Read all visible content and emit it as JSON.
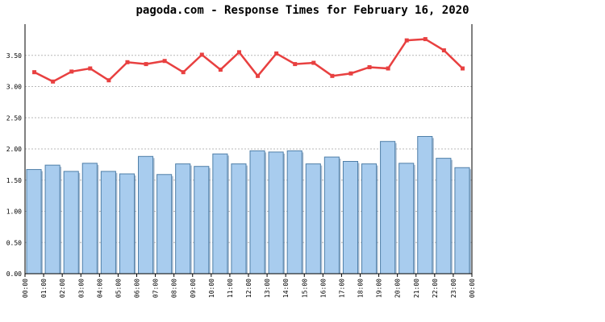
{
  "title": "pagoda.com - Response Times for February 16, 2020",
  "colors": {
    "bar_fill": "#a8ccee",
    "bar_edge": "#4f7fa8",
    "bar_shadow": "#6f8fb0",
    "line": "#e84040",
    "grid": "#b8b8b8",
    "axis": "#000000"
  },
  "chart_data": {
    "type": "bar",
    "grid": true,
    "ylim": [
      0,
      4.0
    ],
    "yticks": [
      "0.00",
      "0.50",
      "1.00",
      "1.50",
      "2.00",
      "2.50",
      "3.00",
      "3.50"
    ],
    "x_ticks": [
      "00:00",
      "01:00",
      "02:00",
      "03:00",
      "04:00",
      "05:00",
      "06:00",
      "07:00",
      "08:00",
      "09:00",
      "10:00",
      "11:00",
      "12:00",
      "13:00",
      "14:00",
      "15:00",
      "16:00",
      "17:00",
      "18:00",
      "19:00",
      "20:00",
      "21:00",
      "22:00",
      "23:00",
      "00:00"
    ],
    "series": [
      {
        "kind": "bar",
        "values": [
          1.67,
          1.74,
          1.64,
          1.77,
          1.64,
          1.6,
          1.88,
          1.59,
          1.76,
          1.72,
          1.92,
          1.76,
          1.97,
          1.95,
          1.97,
          1.76,
          1.87,
          1.8,
          1.76,
          2.12,
          1.77,
          2.2,
          1.85,
          1.7
        ]
      },
      {
        "kind": "line",
        "values": [
          3.23,
          3.08,
          3.24,
          3.29,
          3.1,
          3.39,
          3.36,
          3.41,
          3.23,
          3.51,
          3.27,
          3.55,
          3.17,
          3.53,
          3.36,
          3.38,
          3.17,
          3.21,
          3.31,
          3.29,
          3.74,
          3.76,
          3.58,
          3.29
        ]
      }
    ]
  }
}
